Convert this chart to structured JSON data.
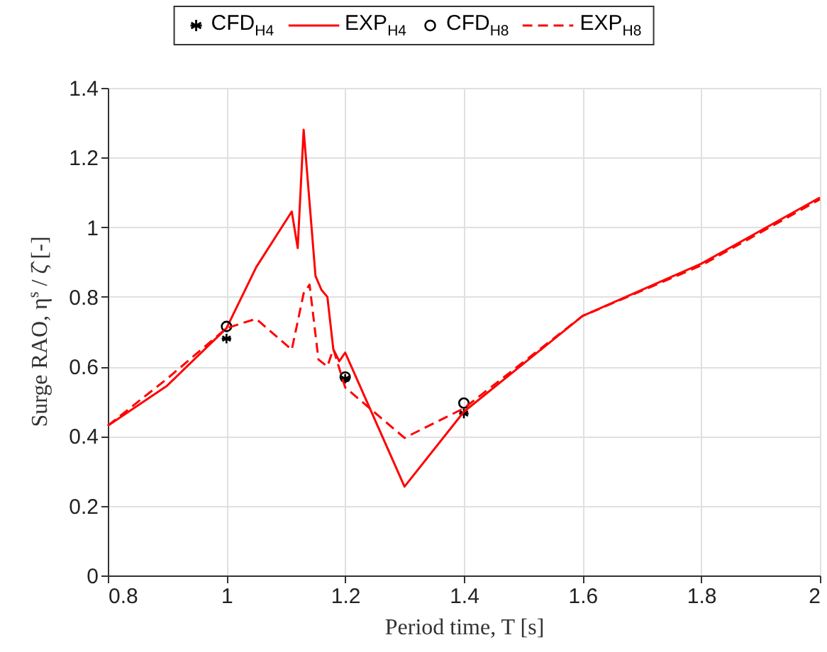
{
  "chart_data": {
    "type": "line",
    "xlabel": "Period time, T [s]",
    "ylabel": "Surge RAO, η$^{s}$ / ζ̂ [-]",
    "xlim": [
      0.8,
      2
    ],
    "ylim": [
      0,
      1.4
    ],
    "xticks": [
      0.8,
      1,
      1.2,
      1.4,
      1.6,
      1.8,
      2
    ],
    "yticks": [
      0,
      0.2,
      0.4,
      0.6,
      0.8,
      1,
      1.2,
      1.4
    ],
    "grid": true,
    "legend": "top",
    "series": [
      {
        "name": "CFD$_{H4}$",
        "type": "scatter",
        "marker": "cross",
        "color": "#000000",
        "x": [
          1.0,
          1.2,
          1.4
        ],
        "values": [
          0.68,
          0.565,
          0.465
        ]
      },
      {
        "name": "EXP$_{H4}$",
        "type": "line",
        "line_style": "solid",
        "color": "#ff0000",
        "x": [
          0.8,
          0.9,
          1.0,
          1.05,
          1.11,
          1.12,
          1.13,
          1.15,
          1.16,
          1.17,
          1.18,
          1.19,
          1.2,
          1.3,
          1.4,
          1.6,
          1.8,
          2.0
        ],
        "values": [
          0.43,
          0.545,
          0.71,
          0.885,
          1.045,
          0.94,
          1.28,
          0.86,
          0.82,
          0.8,
          0.65,
          0.615,
          0.64,
          0.255,
          0.47,
          0.745,
          0.895,
          1.085
        ]
      },
      {
        "name": "CFD$_{H8}$",
        "type": "scatter",
        "marker": "circle",
        "color": "#000000",
        "x": [
          1.0,
          1.2,
          1.4
        ],
        "values": [
          0.715,
          0.57,
          0.495
        ]
      },
      {
        "name": "EXP$_{H8}$",
        "type": "line",
        "line_style": "dashed",
        "color": "#ff0000",
        "x": [
          0.8,
          0.9,
          1.0,
          1.05,
          1.11,
          1.13,
          1.14,
          1.155,
          1.17,
          1.18,
          1.2,
          1.3,
          1.4,
          1.6,
          1.8,
          2.0
        ],
        "values": [
          0.43,
          0.565,
          0.71,
          0.737,
          0.648,
          0.81,
          0.835,
          0.62,
          0.6,
          0.65,
          0.54,
          0.395,
          0.48,
          0.745,
          0.89,
          1.08
        ]
      }
    ]
  }
}
